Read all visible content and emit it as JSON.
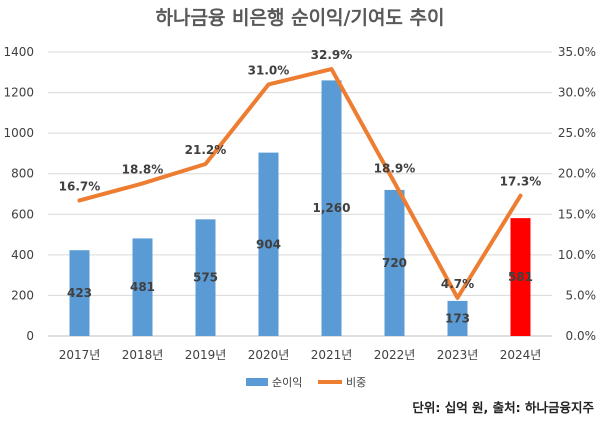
{
  "chart_data": {
    "type": "bar",
    "title": "하나금융 비은행 순이익/기여도 추이",
    "categories": [
      "2017년",
      "2018년",
      "2019년",
      "2020년",
      "2021년",
      "2022년",
      "2023년",
      "2024년"
    ],
    "series": [
      {
        "name": "순이익",
        "type": "bar",
        "axis": "left",
        "values": [
          423,
          481,
          575,
          904,
          1260,
          720,
          173,
          581
        ],
        "labels": [
          "423",
          "481",
          "575",
          "904",
          "1,260",
          "720",
          "173",
          "581"
        ],
        "color": "#5b9bd5",
        "highlight_color": "#ff0000",
        "highlight_index": 7
      },
      {
        "name": "비중",
        "type": "line",
        "axis": "right",
        "values": [
          16.7,
          18.8,
          21.2,
          31.0,
          32.9,
          18.9,
          4.7,
          17.3
        ],
        "labels": [
          "16.7%",
          "18.8%",
          "21.2%",
          "31.0%",
          "32.9%",
          "18.9%",
          "4.7%",
          "17.3%"
        ],
        "color": "#ed7d31"
      }
    ],
    "y_left": {
      "min": 0,
      "max": 1400,
      "ticks": [
        "0",
        "200",
        "400",
        "600",
        "800",
        "1000",
        "1200",
        "1400"
      ]
    },
    "y_right": {
      "min": 0,
      "max": 35,
      "ticks": [
        "0.0%",
        "5.0%",
        "10.0%",
        "15.0%",
        "20.0%",
        "25.0%",
        "30.0%",
        "35.0%"
      ]
    },
    "grid": true,
    "legend_position": "bottom",
    "source_note": "단위: 십억 원, 출처: 하나금융지주"
  }
}
